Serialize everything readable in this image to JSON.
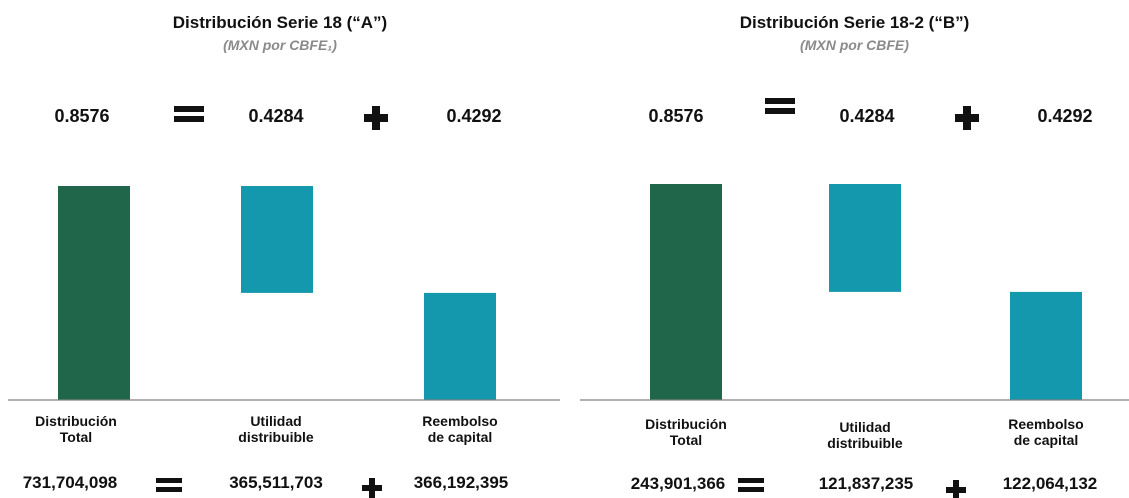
{
  "colors": {
    "total_bar": "#20664a",
    "component_bar": "#1498ae",
    "axis": "#808080",
    "operator": "#111111",
    "subtitle": "#8a8a8a"
  },
  "chart_data": [
    {
      "type": "bar",
      "subtype": "waterfall",
      "title": "Distribución Serie 18 (“A”)",
      "subtitle": "(MXN por CBFE₁)",
      "categories": [
        "Distribución\nTotal",
        "Utilidad\ndistribuible",
        "Reembolso\nde capital"
      ],
      "values": [
        0.8576,
        0.4284,
        0.4292
      ],
      "bar_ranges": [
        [
          0,
          0.8576
        ],
        [
          0.4292,
          0.8576
        ],
        [
          0,
          0.4292
        ]
      ],
      "equation_values": [
        "0.8576",
        "0.4284",
        "0.4292"
      ],
      "totals": [
        "731,704,098",
        "365,511,703",
        "366,192,395"
      ],
      "ylim": [
        0,
        0.8576
      ],
      "grid": false,
      "legend": "none"
    },
    {
      "type": "bar",
      "subtype": "waterfall",
      "title": "Distribución Serie 18-2 (“B”)",
      "subtitle": "(MXN por CBFE)",
      "categories": [
        "Distribución\nTotal",
        "Utilidad\ndistribuible",
        "Reembolso\nde capital"
      ],
      "values": [
        0.8576,
        0.4284,
        0.4292
      ],
      "bar_ranges": [
        [
          0,
          0.8576
        ],
        [
          0.4292,
          0.8576
        ],
        [
          0,
          0.4292
        ]
      ],
      "equation_values": [
        "0.8576",
        "0.4284",
        "0.4292"
      ],
      "totals": [
        "243,901,366",
        "121,837,235",
        "122,064,132"
      ],
      "ylim": [
        0,
        0.8576
      ],
      "grid": false,
      "legend": "none"
    }
  ]
}
